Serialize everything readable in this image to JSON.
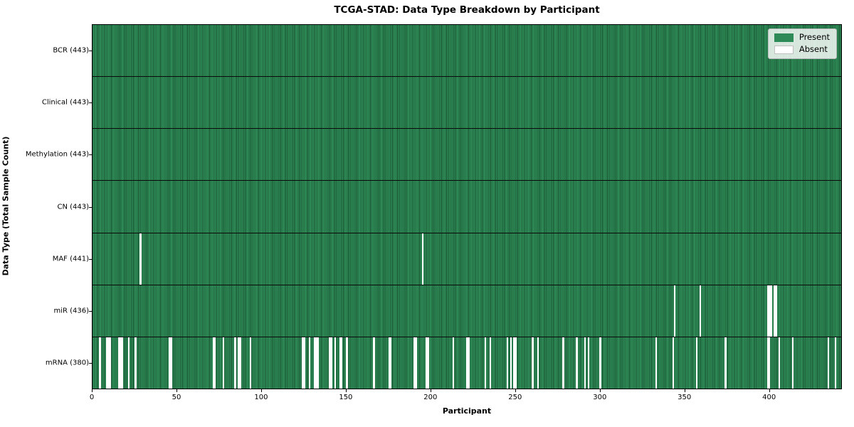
{
  "title": "TCGA-STAD: Data Type Breakdown by Participant",
  "axes": {
    "xlabel": "Participant",
    "ylabel": "Data Type (Total Sample Count)"
  },
  "legend": {
    "present_label": "Present",
    "absent_label": "Absent"
  },
  "colors": {
    "present": "#2e8b57",
    "present_edge": "#18512f",
    "absent": "#ffffff",
    "separator": "#0a0a0a"
  },
  "x_ticks": [
    0,
    50,
    100,
    150,
    200,
    250,
    300,
    350,
    400
  ],
  "chart_data": {
    "type": "heatmap",
    "title": "TCGA-STAD: Data Type Breakdown by Participant",
    "xlabel": "Participant",
    "ylabel": "Data Type (Total Sample Count)",
    "x_range": [
      0,
      443
    ],
    "n_participants": 443,
    "legend": [
      "Present",
      "Absent"
    ],
    "legend_position": "upper right",
    "grid": false,
    "rows": [
      {
        "label": "BCR (443)",
        "data_type": "BCR",
        "total": 443,
        "absent_participants": []
      },
      {
        "label": "Clinical (443)",
        "data_type": "Clinical",
        "total": 443,
        "absent_participants": []
      },
      {
        "label": "Methylation (443)",
        "data_type": "Methylation",
        "total": 443,
        "absent_participants": []
      },
      {
        "label": "CN (443)",
        "data_type": "CN",
        "total": 443,
        "absent_participants": []
      },
      {
        "label": "MAF (441)",
        "data_type": "MAF",
        "total": 441,
        "absent_participants": [
          28,
          195
        ]
      },
      {
        "label": "miR (436)",
        "data_type": "miR",
        "total": 436,
        "absent_participants": [
          344,
          359,
          399,
          400,
          401,
          403,
          404
        ]
      },
      {
        "label": "mRNA (380)",
        "data_type": "mRNA",
        "total": 380,
        "absent_participants": [
          4,
          8,
          9,
          10,
          15,
          16,
          17,
          21,
          25,
          45,
          46,
          71,
          72,
          77,
          84,
          86,
          87,
          93,
          124,
          125,
          128,
          131,
          132,
          133,
          140,
          141,
          143,
          146,
          147,
          150,
          166,
          175,
          176,
          190,
          191,
          197,
          198,
          213,
          221,
          222,
          232,
          235,
          245,
          247,
          249,
          250,
          260,
          263,
          278,
          286,
          291,
          293,
          300,
          333,
          343,
          357,
          374,
          399,
          400,
          406,
          414,
          435,
          439
        ]
      }
    ]
  }
}
